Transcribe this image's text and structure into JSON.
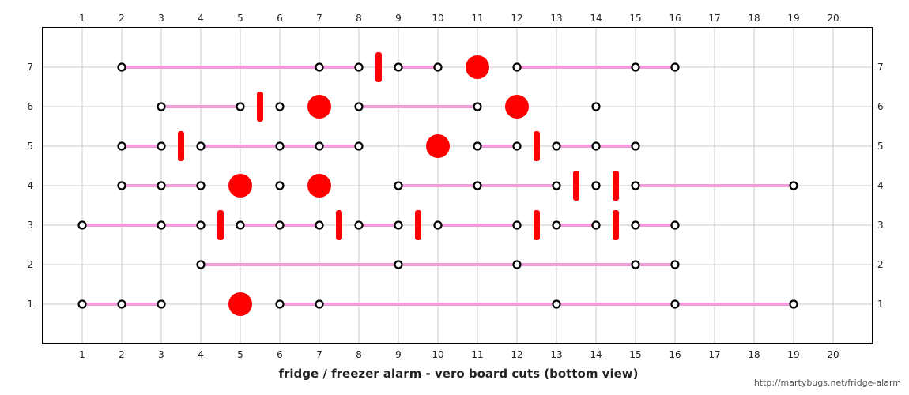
{
  "title": "fridge / freezer alarm - vero board cuts (bottom view)",
  "credit": "http://martybugs.net/fridge-alarm",
  "colors": {
    "grid": "#c8c8c8",
    "frame": "#000000",
    "track": "#f59bdc",
    "cut": "#ff0000",
    "pad_stroke": "#000000",
    "pad_fill": "#ffffff"
  },
  "chart_data": {
    "type": "diagram",
    "x_ticks": [
      1,
      2,
      3,
      4,
      5,
      6,
      7,
      8,
      9,
      10,
      11,
      12,
      13,
      14,
      15,
      16,
      17,
      18,
      19,
      20
    ],
    "y_ticks": [
      1,
      2,
      3,
      4,
      5,
      6,
      7
    ],
    "tracks": [
      {
        "row": 7,
        "from": 2,
        "to": 8
      },
      {
        "row": 7,
        "from": 9,
        "to": 10
      },
      {
        "row": 7,
        "from": 12,
        "to": 16
      },
      {
        "row": 6,
        "from": 3,
        "to": 5
      },
      {
        "row": 6,
        "from": 8,
        "to": 11
      },
      {
        "row": 5,
        "from": 2,
        "to": 3
      },
      {
        "row": 5,
        "from": 4,
        "to": 8
      },
      {
        "row": 5,
        "from": 11,
        "to": 12
      },
      {
        "row": 5,
        "from": 13,
        "to": 15
      },
      {
        "row": 4,
        "from": 2,
        "to": 4
      },
      {
        "row": 4,
        "from": 9,
        "to": 13
      },
      {
        "row": 4,
        "from": 15,
        "to": 19
      },
      {
        "row": 3,
        "from": 1,
        "to": 4
      },
      {
        "row": 3,
        "from": 5,
        "to": 7
      },
      {
        "row": 3,
        "from": 8,
        "to": 9
      },
      {
        "row": 3,
        "from": 10,
        "to": 12
      },
      {
        "row": 3,
        "from": 13,
        "to": 14
      },
      {
        "row": 3,
        "from": 15,
        "to": 16
      },
      {
        "row": 2,
        "from": 4,
        "to": 16
      },
      {
        "row": 1,
        "from": 1,
        "to": 3
      },
      {
        "row": 1,
        "from": 6,
        "to": 19
      }
    ],
    "pads": [
      {
        "row": 7,
        "cols": [
          2,
          7,
          8,
          9,
          10,
          12,
          15,
          16
        ]
      },
      {
        "row": 6,
        "cols": [
          3,
          5,
          6,
          8,
          11,
          14
        ]
      },
      {
        "row": 5,
        "cols": [
          2,
          3,
          4,
          6,
          7,
          8,
          11,
          12,
          13,
          14,
          15
        ]
      },
      {
        "row": 4,
        "cols": [
          2,
          3,
          4,
          6,
          9,
          11,
          13,
          14,
          15,
          19
        ]
      },
      {
        "row": 3,
        "cols": [
          1,
          3,
          4,
          5,
          6,
          7,
          8,
          9,
          10,
          12,
          13,
          14,
          15,
          16
        ]
      },
      {
        "row": 2,
        "cols": [
          4,
          9,
          12,
          15,
          16
        ]
      },
      {
        "row": 1,
        "cols": [
          1,
          2,
          3,
          6,
          7,
          13,
          16,
          19
        ]
      }
    ],
    "hole_cuts": [
      {
        "row": 7,
        "col": 11
      },
      {
        "row": 6,
        "col": 7
      },
      {
        "row": 6,
        "col": 12
      },
      {
        "row": 5,
        "col": 10
      },
      {
        "row": 4,
        "col": 5
      },
      {
        "row": 4,
        "col": 7
      },
      {
        "row": 1,
        "col": 5
      }
    ],
    "gap_cuts": [
      {
        "row": 7,
        "col": 8.5
      },
      {
        "row": 6,
        "col": 5.5
      },
      {
        "row": 5,
        "col": 3.5
      },
      {
        "row": 5,
        "col": 12.5
      },
      {
        "row": 4,
        "col": 13.5
      },
      {
        "row": 4,
        "col": 14.5
      },
      {
        "row": 3,
        "col": 4.5
      },
      {
        "row": 3,
        "col": 7.5
      },
      {
        "row": 3,
        "col": 9.5
      },
      {
        "row": 3,
        "col": 12.5
      },
      {
        "row": 3,
        "col": 14.5
      }
    ]
  }
}
